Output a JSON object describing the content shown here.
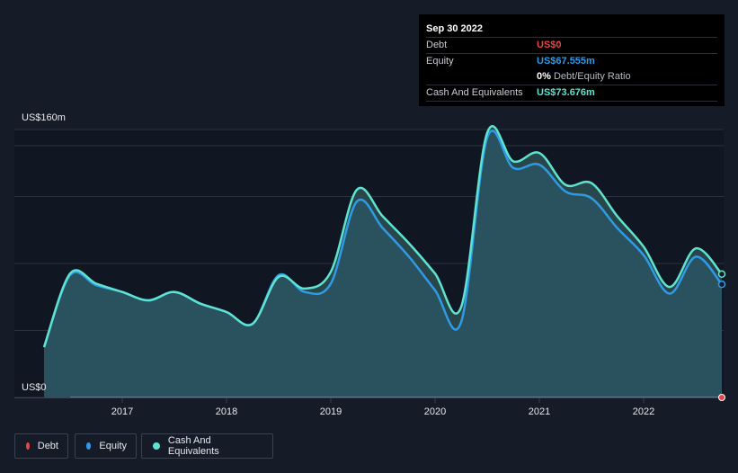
{
  "tooltip": {
    "date": "Sep 30 2022",
    "rows": [
      {
        "label": "Debt",
        "value": "US$0",
        "color": "#e64545"
      },
      {
        "label": "Equity",
        "value": "US$67.555m",
        "color": "#2f9ae6"
      },
      {
        "label": "",
        "value": "0%",
        "sub": "Debt/Equity Ratio",
        "color": "#ffffff"
      },
      {
        "label": "Cash And Equivalents",
        "value": "US$73.676m",
        "color": "#5ee3d0"
      }
    ]
  },
  "axis": {
    "y_top_label": "US$160m",
    "y_zero_label": "US$0",
    "x_ticks": [
      "2017",
      "2018",
      "2019",
      "2020",
      "2021",
      "2022"
    ]
  },
  "legend": [
    {
      "label": "Debt",
      "color": "#e64545"
    },
    {
      "label": "Equity",
      "color": "#2f9ae6"
    },
    {
      "label": "Cash And Equivalents",
      "color": "#5ee3d0"
    }
  ],
  "chart_data": {
    "type": "area",
    "ylabel": "",
    "ylim": [
      0,
      160
    ],
    "y_unit": "US$m",
    "x_ticks": [
      "2017",
      "2018",
      "2019",
      "2020",
      "2021",
      "2022"
    ],
    "series": [
      {
        "name": "Cash And Equivalents",
        "color": "#5ee3d0",
        "points": [
          [
            2016.25,
            30
          ],
          [
            2016.5,
            74
          ],
          [
            2016.75,
            68
          ],
          [
            2017.0,
            63
          ],
          [
            2017.25,
            58
          ],
          [
            2017.5,
            63
          ],
          [
            2017.75,
            56
          ],
          [
            2018.0,
            51
          ],
          [
            2018.25,
            44
          ],
          [
            2018.5,
            72
          ],
          [
            2018.75,
            65
          ],
          [
            2019.0,
            75
          ],
          [
            2019.25,
            124
          ],
          [
            2019.5,
            108
          ],
          [
            2019.75,
            92
          ],
          [
            2020.0,
            74
          ],
          [
            2020.25,
            54
          ],
          [
            2020.5,
            158
          ],
          [
            2020.75,
            141
          ],
          [
            2021.0,
            146
          ],
          [
            2021.25,
            127
          ],
          [
            2021.5,
            128
          ],
          [
            2021.75,
            108
          ],
          [
            2022.0,
            90
          ],
          [
            2022.25,
            66
          ],
          [
            2022.5,
            89
          ],
          [
            2022.75,
            73.676
          ]
        ]
      },
      {
        "name": "Equity",
        "color": "#2f9ae6",
        "points": [
          [
            2016.25,
            30
          ],
          [
            2016.5,
            73
          ],
          [
            2016.75,
            67
          ],
          [
            2017.0,
            63
          ],
          [
            2017.25,
            58
          ],
          [
            2017.5,
            63
          ],
          [
            2017.75,
            56
          ],
          [
            2018.0,
            51
          ],
          [
            2018.25,
            44
          ],
          [
            2018.5,
            73
          ],
          [
            2018.75,
            63
          ],
          [
            2019.0,
            68
          ],
          [
            2019.25,
            117
          ],
          [
            2019.5,
            101
          ],
          [
            2019.75,
            84
          ],
          [
            2020.0,
            64
          ],
          [
            2020.25,
            45
          ],
          [
            2020.5,
            155
          ],
          [
            2020.75,
            137
          ],
          [
            2021.0,
            139
          ],
          [
            2021.25,
            123
          ],
          [
            2021.5,
            119
          ],
          [
            2021.75,
            101
          ],
          [
            2022.0,
            85
          ],
          [
            2022.25,
            62
          ],
          [
            2022.5,
            84
          ],
          [
            2022.75,
            67.555
          ]
        ]
      },
      {
        "name": "Debt",
        "color": "#e64545",
        "points": [
          [
            2016.5,
            0
          ],
          [
            2022.75,
            0
          ]
        ]
      }
    ]
  }
}
